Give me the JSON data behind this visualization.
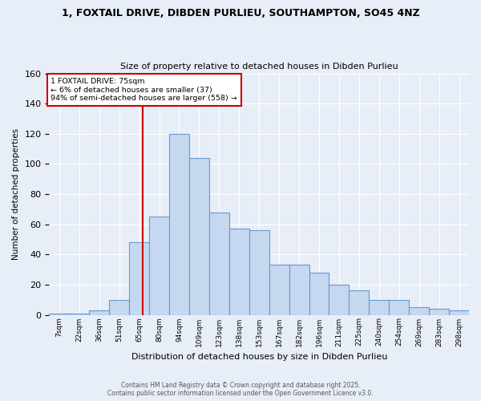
{
  "title_line1": "1, FOXTAIL DRIVE, DIBDEN PURLIEU, SOUTHAMPTON, SO45 4NZ",
  "title_line2": "Size of property relative to detached houses in Dibden Purlieu",
  "xlabel": "Distribution of detached houses by size in Dibden Purlieu",
  "ylabel": "Number of detached properties",
  "bar_labels": [
    "7sqm",
    "22sqm",
    "36sqm",
    "51sqm",
    "65sqm",
    "80sqm",
    "94sqm",
    "109sqm",
    "123sqm",
    "138sqm",
    "153sqm",
    "167sqm",
    "182sqm",
    "196sqm",
    "211sqm",
    "225sqm",
    "240sqm",
    "254sqm",
    "269sqm",
    "283sqm",
    "298sqm"
  ],
  "bar_values": [
    1,
    1,
    3,
    10,
    48,
    65,
    120,
    104,
    68,
    57,
    56,
    33,
    33,
    28,
    20,
    16,
    10,
    10,
    5,
    4,
    3
  ],
  "bar_color": "#c5d8f0",
  "bar_edge_color": "#6699cc",
  "bg_color": "#e8eef8",
  "grid_color": "#ffffff",
  "annotation_text": "1 FOXTAIL DRIVE: 75sqm\n← 6% of detached houses are smaller (37)\n94% of semi-detached houses are larger (558) →",
  "annotation_box_color": "#ffffff",
  "annotation_box_edge": "#cc0000",
  "footer_line1": "Contains HM Land Registry data © Crown copyright and database right 2025.",
  "footer_line2": "Contains public sector information licensed under the Open Government Licence v3.0.",
  "ylim": [
    0,
    160
  ],
  "yticks": [
    0,
    20,
    40,
    60,
    80,
    100,
    120,
    140,
    160
  ]
}
